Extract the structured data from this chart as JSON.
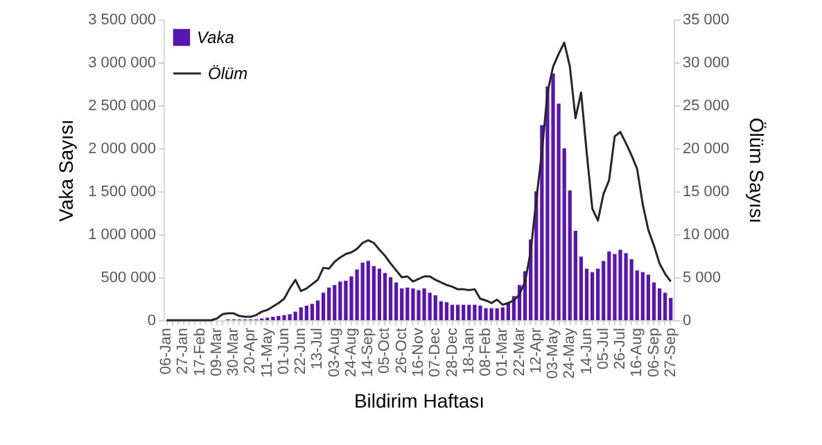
{
  "chart_data": {
    "type": "bar",
    "categories": [
      "06-Jan",
      null,
      null,
      "27-Jan",
      null,
      null,
      "17-Feb",
      null,
      null,
      "09-Mar",
      null,
      null,
      "30-Mar",
      null,
      null,
      "20-Apr",
      null,
      null,
      "11-May",
      null,
      null,
      "01-Jun",
      null,
      null,
      "22-Jun",
      null,
      null,
      "13-Jul",
      null,
      null,
      "03-Aug",
      null,
      null,
      "24-Aug",
      null,
      null,
      "14-Sep",
      null,
      null,
      "05-Oct",
      null,
      null,
      "26-Oct",
      null,
      null,
      "16-Nov",
      null,
      null,
      "07-Dec",
      null,
      null,
      "28-Dec",
      null,
      null,
      "18-Jan",
      null,
      null,
      "08-Feb",
      null,
      null,
      "01-Mar",
      null,
      null,
      "22-Mar",
      null,
      null,
      "12-Apr",
      null,
      null,
      "03-May",
      null,
      null,
      "24-May",
      null,
      null,
      "14-Jun",
      null,
      null,
      "05-Jul",
      null,
      null,
      "26-Jul",
      null,
      null,
      "16-Aug",
      null,
      null,
      "06-Sep",
      null,
      null,
      "27-Sep"
    ],
    "series": [
      {
        "name": "Vaka",
        "color": "#5a14b4",
        "values": [
          0,
          0,
          0,
          0,
          0,
          0,
          0,
          0,
          0,
          0,
          0,
          10000,
          10000,
          10000,
          10000,
          10000,
          10000,
          20000,
          30000,
          40000,
          50000,
          60000,
          70000,
          100000,
          150000,
          170000,
          190000,
          230000,
          320000,
          380000,
          410000,
          450000,
          460000,
          510000,
          590000,
          670000,
          690000,
          630000,
          600000,
          550000,
          500000,
          440000,
          370000,
          380000,
          370000,
          350000,
          370000,
          320000,
          290000,
          220000,
          210000,
          180000,
          180000,
          180000,
          180000,
          180000,
          170000,
          140000,
          140000,
          140000,
          150000,
          210000,
          280000,
          410000,
          570000,
          940000,
          1500000,
          2270000,
          2720000,
          2870000,
          2520000,
          2000000,
          1510000,
          1040000,
          740000,
          600000,
          560000,
          600000,
          690000,
          800000,
          770000,
          820000,
          780000,
          710000,
          580000,
          560000,
          530000,
          440000,
          370000,
          320000,
          260000
        ]
      },
      {
        "name": "Ölüm",
        "type": "line",
        "axis": "y2",
        "color": "#262626",
        "values": [
          0,
          0,
          0,
          0,
          0,
          0,
          0,
          0,
          0,
          200,
          700,
          800,
          800,
          500,
          400,
          400,
          600,
          1000,
          1200,
          1600,
          2000,
          2500,
          3700,
          4700,
          3400,
          3700,
          4200,
          4700,
          6100,
          6000,
          6800,
          7300,
          7700,
          7900,
          8300,
          9000,
          9300,
          9000,
          8200,
          7500,
          6600,
          5800,
          5000,
          5100,
          4500,
          4800,
          5100,
          5100,
          4700,
          4400,
          4100,
          3900,
          3600,
          3600,
          3500,
          3600,
          2500,
          2300,
          2000,
          2400,
          1800,
          2000,
          2300,
          3000,
          4500,
          8000,
          14000,
          19500,
          26500,
          29500,
          31000,
          32300,
          29500,
          23500,
          26500,
          19500,
          13000,
          11600,
          14700,
          16300,
          21400,
          21900,
          20600,
          19200,
          17600,
          13500,
          10500,
          8700,
          6600,
          5400,
          4500
        ]
      }
    ],
    "ylim": [
      0,
      3500000
    ],
    "yticks": [
      0,
      {
        "value": 500000,
        "label": "500 000"
      },
      {
        "value": 1000000,
        "label": "1 000 000"
      },
      {
        "value": 1500000,
        "label": "1 500 000"
      },
      {
        "value": 2000000,
        "label": "2 000 000"
      },
      {
        "value": 2500000,
        "label": "2 500 000"
      },
      {
        "value": 3000000,
        "label": "3 000 000"
      },
      {
        "value": 3500000,
        "label": "3 500 000"
      }
    ],
    "y2lim": [
      0,
      35000
    ],
    "y2ticks": [
      0,
      {
        "value": 5000,
        "label": "5 000"
      },
      {
        "value": 10000,
        "label": "10 000"
      },
      {
        "value": 15000,
        "label": "15 000"
      },
      {
        "value": 20000,
        "label": "20 000"
      },
      {
        "value": 25000,
        "label": "25 000"
      },
      {
        "value": 30000,
        "label": "30 000"
      },
      {
        "value": 35000,
        "label": "35 000"
      }
    ],
    "xlabel": "Bildirim Haftası",
    "ylabel": "Vaka Sayısı",
    "y2label": "Ölüm Sayısı",
    "legend": "top left"
  }
}
